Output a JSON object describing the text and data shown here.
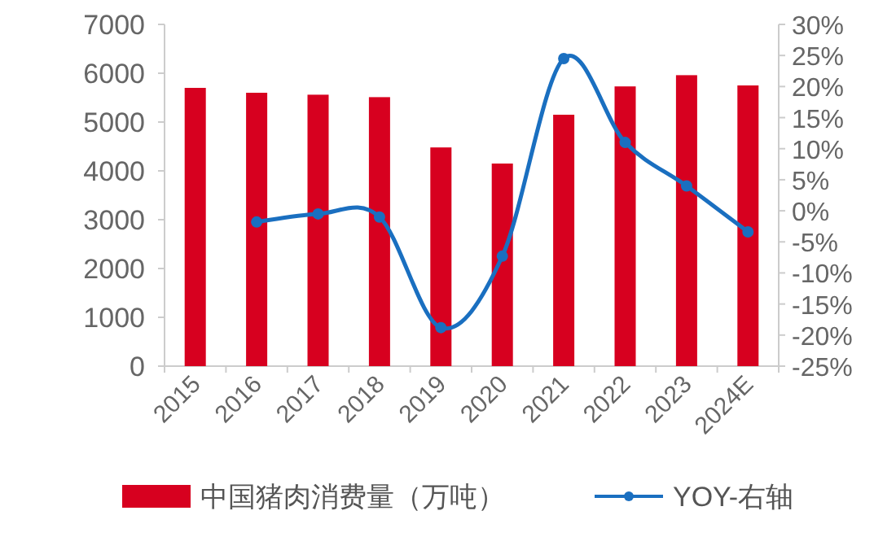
{
  "chart_data": {
    "type": "bar",
    "categories": [
      "2015",
      "2016",
      "2017",
      "2018",
      "2019",
      "2020",
      "2021",
      "2022",
      "2023",
      "2024E"
    ],
    "series": [
      {
        "name": "中国猪肉消费量（万吨）",
        "color": "#d7001f",
        "values": [
          5700,
          5600,
          5560,
          5510,
          4480,
          4150,
          5150,
          5730,
          5960,
          5750
        ]
      },
      {
        "name": "YOY-右轴",
        "type": "line",
        "axis": "y2",
        "color": "#1a6fc0",
        "marker": "circle",
        "values": [
          null,
          -1.8,
          -0.5,
          -1.0,
          -18.8,
          -7.3,
          24.5,
          11,
          4,
          -3.4
        ]
      }
    ],
    "ylim": [
      0,
      7000
    ],
    "yticks": [
      0,
      1000,
      2000,
      3000,
      4000,
      5000,
      6000,
      7000
    ],
    "y2lim": [
      -25,
      30
    ],
    "y2ticks": [
      {
        "value": -25,
        "label": "-25%"
      },
      {
        "value": -20,
        "label": "-20%"
      },
      {
        "value": -15,
        "label": "-15%"
      },
      {
        "value": -10,
        "label": "-10%"
      },
      {
        "value": -5,
        "label": "-5%"
      },
      {
        "value": 0,
        "label": "0%"
      },
      {
        "value": 5,
        "label": "5%"
      },
      {
        "value": 10,
        "label": "10%"
      },
      {
        "value": 15,
        "label": "15%"
      },
      {
        "value": 20,
        "label": "20%"
      },
      {
        "value": 25,
        "label": "25%"
      },
      {
        "value": 30,
        "label": "30%"
      }
    ],
    "legend": "bottom",
    "grid": false
  }
}
